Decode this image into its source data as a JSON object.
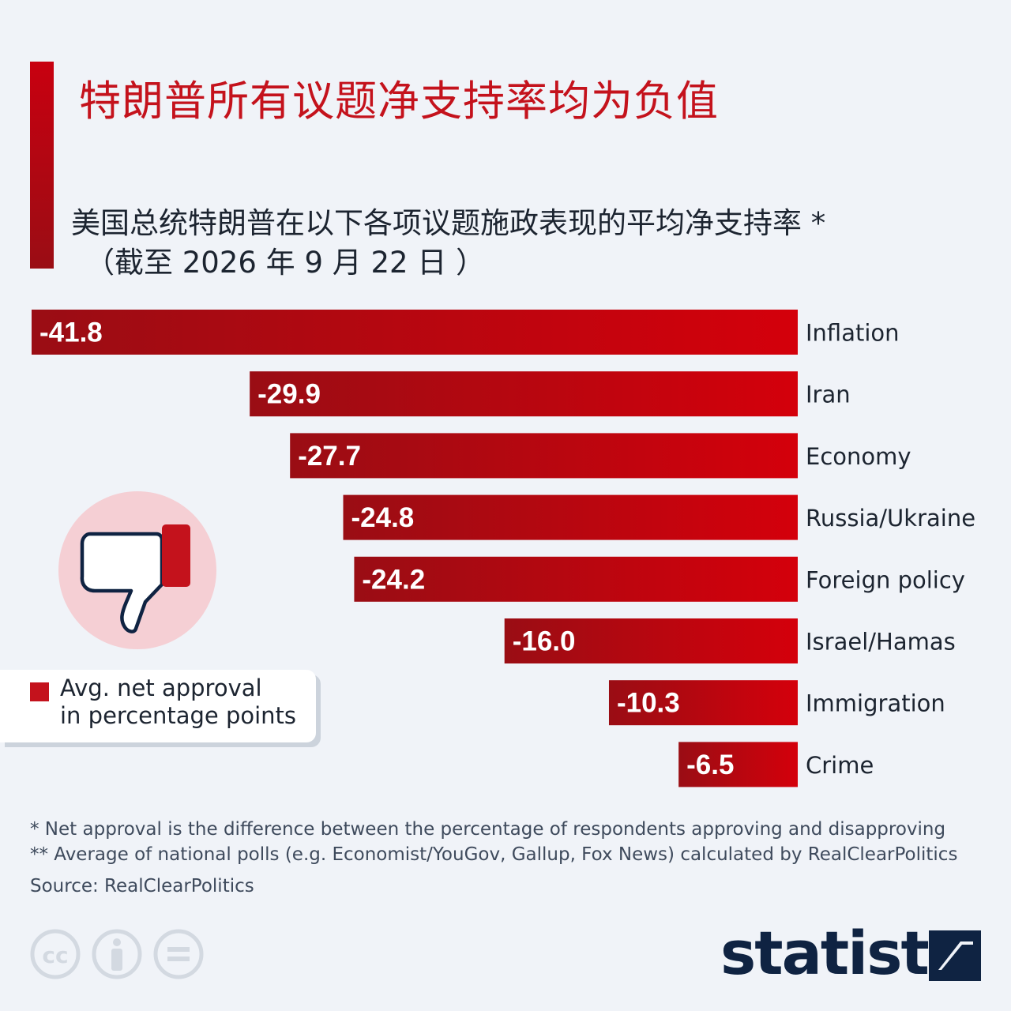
{
  "title": "特朗普所有议题净支持率均为负值",
  "subtitle_line1": "美国总统特朗普在以下各项议题施政表现的平均净支持率 *",
  "subtitle_line2": "（截至 2026 年 9 月 22 日 ）",
  "colors": {
    "accent": "#c4121c",
    "bar_dark": "#9a0d14",
    "bar_light": "#d4000b",
    "badge": "#f5cfd4",
    "navy": "#0f2342"
  },
  "chart_data": {
    "type": "bar",
    "orientation": "horizontal",
    "categories": [
      "Inflation",
      "Iran",
      "Economy",
      "Russia/Ukraine",
      "Foreign policy",
      "Israel/Hamas",
      "Immigration",
      "Crime"
    ],
    "values": [
      -41.8,
      -29.9,
      -27.7,
      -24.8,
      -24.2,
      -16.0,
      -10.3,
      -6.5
    ],
    "value_labels": [
      "-41.8",
      "-29.9",
      "-27.7",
      "-24.8",
      "-24.2",
      "-16.0",
      "-10.3",
      "-6.5"
    ],
    "xlim": [
      -41.8,
      0
    ],
    "grid": false,
    "legend_position": "left"
  },
  "legend": {
    "line1": "Avg. net approval",
    "line2": "in percentage points"
  },
  "icons": [
    "thumbs-down-icon",
    "cc-icon",
    "attribution-icon",
    "no-derivatives-icon",
    "statista-logo"
  ],
  "footnote1": "*   Net approval is the difference between the percentage of respondents approving and disapproving",
  "footnote2": "** Average of national polls (e.g. Economist/YouGov, Gallup, Fox News) calculated by RealClearPolitics",
  "source": "Source: RealClearPolitics",
  "logo_text": "statista"
}
